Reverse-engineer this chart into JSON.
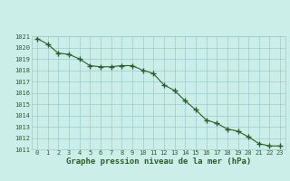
{
  "x": [
    0,
    1,
    2,
    3,
    4,
    5,
    6,
    7,
    8,
    9,
    10,
    11,
    12,
    13,
    14,
    15,
    16,
    17,
    18,
    19,
    20,
    21,
    22,
    23
  ],
  "y": [
    1020.8,
    1020.3,
    1019.5,
    1019.4,
    1019.0,
    1018.4,
    1018.3,
    1018.3,
    1018.4,
    1018.4,
    1018.0,
    1017.7,
    1016.7,
    1016.2,
    1015.3,
    1014.5,
    1013.6,
    1013.3,
    1012.8,
    1012.6,
    1012.1,
    1011.5,
    1011.3,
    1011.3
  ],
  "ylim": [
    1011,
    1021
  ],
  "xlim_left": -0.5,
  "xlim_right": 23.5,
  "yticks": [
    1011,
    1012,
    1013,
    1014,
    1015,
    1016,
    1017,
    1018,
    1019,
    1020,
    1021
  ],
  "xticks": [
    0,
    1,
    2,
    3,
    4,
    5,
    6,
    7,
    8,
    9,
    10,
    11,
    12,
    13,
    14,
    15,
    16,
    17,
    18,
    19,
    20,
    21,
    22,
    23
  ],
  "line_color": "#2a5e2a",
  "marker_color": "#2a5e2a",
  "bg_plot": "#cceee8",
  "bg_fig": "#cceee8",
  "grid_color": "#99cccc",
  "xlabel": "Graphe pression niveau de la mer (hPa)",
  "xlabel_color": "#2a5e2a",
  "tick_label_color": "#2a5e2a",
  "marker": "+",
  "markersize": 4.0,
  "linewidth": 0.8,
  "xlabel_fontsize": 6.5,
  "tick_fontsize": 5.0
}
